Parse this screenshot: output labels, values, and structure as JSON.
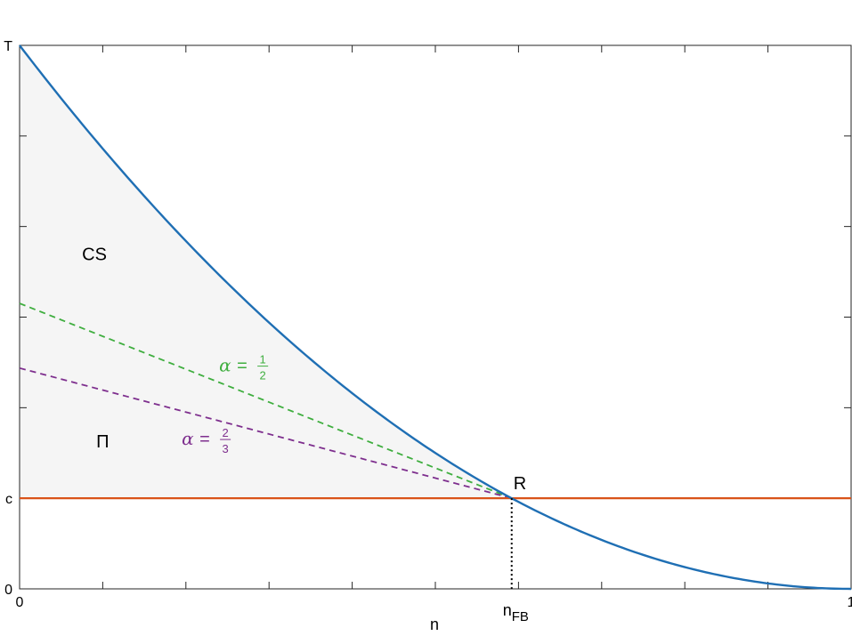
{
  "chart_data": {
    "type": "line",
    "title": "",
    "xlabel": "n",
    "ylabel": "",
    "xlim": [
      0,
      1
    ],
    "ylim": [
      0,
      1
    ],
    "grid": false,
    "colors": {
      "demand": "#1f6fb4",
      "cost": "#d95319",
      "alpha_half": "#3fae3f",
      "alpha_two_thirds": "#7e2f8e",
      "shade": "#f5f5f5"
    },
    "x_ticks": [
      {
        "value": 0,
        "label": "0"
      },
      {
        "value": 0.1,
        "label": ""
      },
      {
        "value": 0.2,
        "label": ""
      },
      {
        "value": 0.3,
        "label": ""
      },
      {
        "value": 0.4,
        "label": ""
      },
      {
        "value": 0.5,
        "label": ""
      },
      {
        "value": 0.6,
        "label": ""
      },
      {
        "value": 0.7,
        "label": ""
      },
      {
        "value": 0.8,
        "label": ""
      },
      {
        "value": 0.9,
        "label": ""
      },
      {
        "value": 1,
        "label": "1"
      }
    ],
    "y_ticks": [
      {
        "value": 0,
        "label": "0"
      },
      {
        "value": 0.1667,
        "label": "c"
      },
      {
        "value": 0.3333,
        "label": ""
      },
      {
        "value": 0.5,
        "label": ""
      },
      {
        "value": 0.6667,
        "label": ""
      },
      {
        "value": 0.8333,
        "label": ""
      },
      {
        "value": 1,
        "label": "T"
      }
    ],
    "curve": {
      "shape": "(1-n)^2",
      "x": [
        0,
        0.05,
        0.1,
        0.15,
        0.2,
        0.25,
        0.3,
        0.35,
        0.4,
        0.45,
        0.5,
        0.55,
        0.6,
        0.65,
        0.7,
        0.75,
        0.8,
        0.85,
        0.9,
        0.95,
        1
      ],
      "y": [
        1,
        0.9025,
        0.81,
        0.7225,
        0.64,
        0.5625,
        0.49,
        0.4225,
        0.36,
        0.3025,
        0.25,
        0.2025,
        0.16,
        0.1225,
        0.09,
        0.0625,
        0.04,
        0.0225,
        0.01,
        0.0025,
        0
      ]
    },
    "cost_line": {
      "y": 0.1667
    },
    "n_fb": 0.5918,
    "n_fb_label": "n",
    "n_fb_subscript": "FB",
    "point_label": "R",
    "series": [
      {
        "key": "alpha_half",
        "label": "α = 1/2",
        "alpha_text": "α",
        "numerator": "1",
        "denominator": "2",
        "x": [
          0,
          0.5918
        ],
        "y": [
          0.5253,
          0.1667
        ],
        "label_at": [
          0.24,
          0.4
        ]
      },
      {
        "key": "alpha_two_thirds",
        "label": "α = 2/3",
        "alpha_text": "α",
        "numerator": "2",
        "denominator": "3",
        "x": [
          0,
          0.5918
        ],
        "y": [
          0.4062,
          0.1667
        ],
        "label_at": [
          0.195,
          0.265
        ]
      }
    ],
    "regions": [
      {
        "label": "CS",
        "at": [
          0.09,
          0.605
        ]
      },
      {
        "label": "Π",
        "at": [
          0.1,
          0.26
        ]
      }
    ]
  }
}
